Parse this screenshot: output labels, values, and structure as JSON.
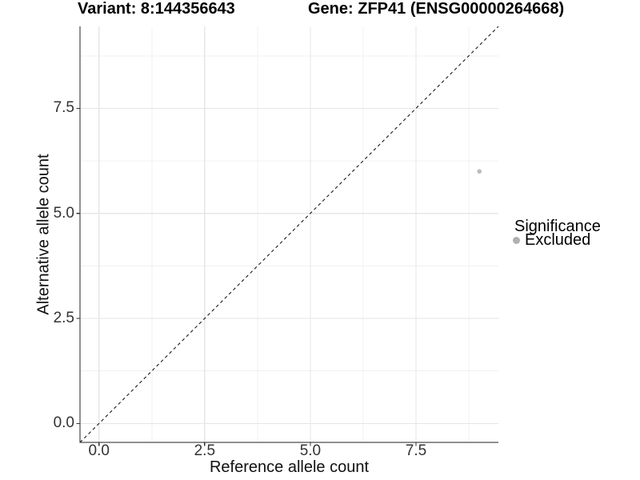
{
  "titles": {
    "variant": "Variant: 8:144356643",
    "gene": "Gene: ZFP41 (ENSG00000264668)"
  },
  "axes": {
    "x": {
      "label": "Reference allele count",
      "tick_labels": [
        "0.0",
        "2.5",
        "5.0",
        "7.5"
      ]
    },
    "y": {
      "label": "Alternative allele count",
      "tick_labels": [
        "0.0",
        "2.5",
        "5.0",
        "7.5"
      ]
    }
  },
  "legend": {
    "title": "Significance",
    "items": [
      {
        "label": "Excluded",
        "color": "#b0b0b0"
      }
    ]
  },
  "colors": {
    "grid_major": "#e6e6e6",
    "grid_minor": "#f1f1f1",
    "axis_line": "#222222",
    "tick_mark": "#333333",
    "reference_line": "#1a1a1a",
    "point": "#bdbdbd"
  },
  "chart_data": {
    "type": "scatter",
    "title": "Variant: 8:144356643 | Gene: ZFP41 (ENSG00000264668)",
    "xlabel": "Reference allele count",
    "ylabel": "Alternative allele count",
    "xlim": [
      -0.45,
      9.45
    ],
    "ylim": [
      -0.45,
      9.45
    ],
    "x_ticks": [
      0.0,
      2.5,
      5.0,
      7.5
    ],
    "y_ticks": [
      0.0,
      2.5,
      5.0,
      7.5
    ],
    "x_minor_ticks": [
      1.25,
      3.75,
      6.25,
      8.75
    ],
    "y_minor_ticks": [
      1.25,
      3.75,
      6.25,
      8.75
    ],
    "grid": true,
    "legend_position": "right",
    "legend_title": "Significance",
    "reference_line": {
      "style": "dashed",
      "slope": 1,
      "intercept": 0
    },
    "series": [
      {
        "name": "Excluded",
        "color": "#bdbdbd",
        "points": [
          {
            "x": 9,
            "y": 6
          }
        ]
      }
    ]
  }
}
